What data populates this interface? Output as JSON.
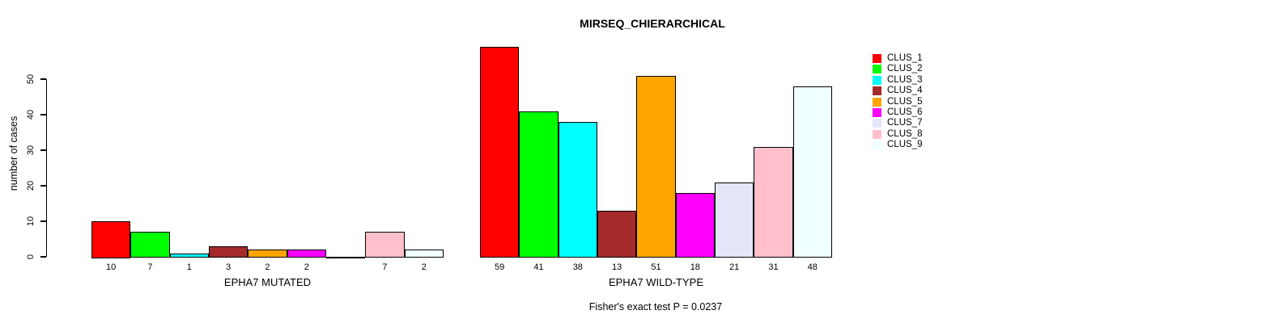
{
  "chart_data": {
    "type": "bar",
    "title": "MIRSEQ_CHIERARCHICAL",
    "ylabel": "number of cases",
    "xlabel": "",
    "annotation": "Fisher's exact test P = 0.0237",
    "yticks": [
      0,
      10,
      20,
      30,
      40,
      50
    ],
    "ylim": [
      0,
      59
    ],
    "grid": false,
    "legend_position": "right",
    "categories": [
      "CLUS_1",
      "CLUS_2",
      "CLUS_3",
      "CLUS_4",
      "CLUS_5",
      "CLUS_6",
      "CLUS_7",
      "CLUS_8",
      "CLUS_9"
    ],
    "colors": [
      "#FF0000",
      "#00FF00",
      "#00FFFF",
      "#A52A2A",
      "#FFA500",
      "#FF00FF",
      "#E6E6FA",
      "#FFC0CB",
      "#F0FFFF"
    ],
    "series": [
      {
        "name": "EPHA7 MUTATED",
        "values": [
          10,
          7,
          1,
          3,
          2,
          2,
          0,
          7,
          2
        ]
      },
      {
        "name": "EPHA7 WILD-TYPE",
        "values": [
          59,
          41,
          38,
          13,
          51,
          18,
          21,
          31,
          48
        ]
      }
    ]
  }
}
